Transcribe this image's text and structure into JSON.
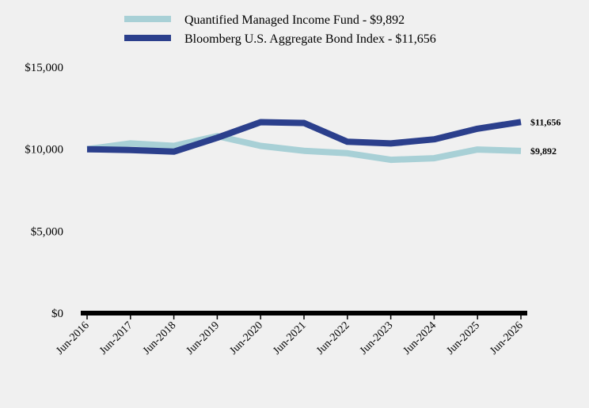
{
  "chart_data": {
    "type": "line",
    "x": [
      "Jun-2016",
      "Jun-2017",
      "Jun-2018",
      "Jun-2019",
      "Jun-2020",
      "Jun-2021",
      "Jun-2022",
      "Jun-2023",
      "Jun-2024",
      "Jun-2025",
      "Jun-2026"
    ],
    "series": [
      {
        "name": "Quantified Managed Income Fund - $9,892",
        "color": "#a8d0d6",
        "values": [
          10000,
          10350,
          10200,
          10800,
          10200,
          9900,
          9750,
          9350,
          9450,
          9980,
          9892
        ],
        "end_label": "$9,892"
      },
      {
        "name": "Bloomberg U.S. Aggregate Bond Index - $11,656",
        "color": "#2b3f8c",
        "values": [
          10000,
          9950,
          9850,
          10700,
          11650,
          11600,
          10450,
          10350,
          10600,
          11250,
          11656
        ],
        "end_label": "$11,656"
      }
    ],
    "y_ticks": [
      {
        "value": 0,
        "label": "$0"
      },
      {
        "value": 5000,
        "label": "$5,000"
      },
      {
        "value": 10000,
        "label": "$10,000"
      },
      {
        "value": 15000,
        "label": "$15,000"
      }
    ],
    "ylim": [
      0,
      15000
    ],
    "grid": false,
    "legend_position": "top"
  }
}
